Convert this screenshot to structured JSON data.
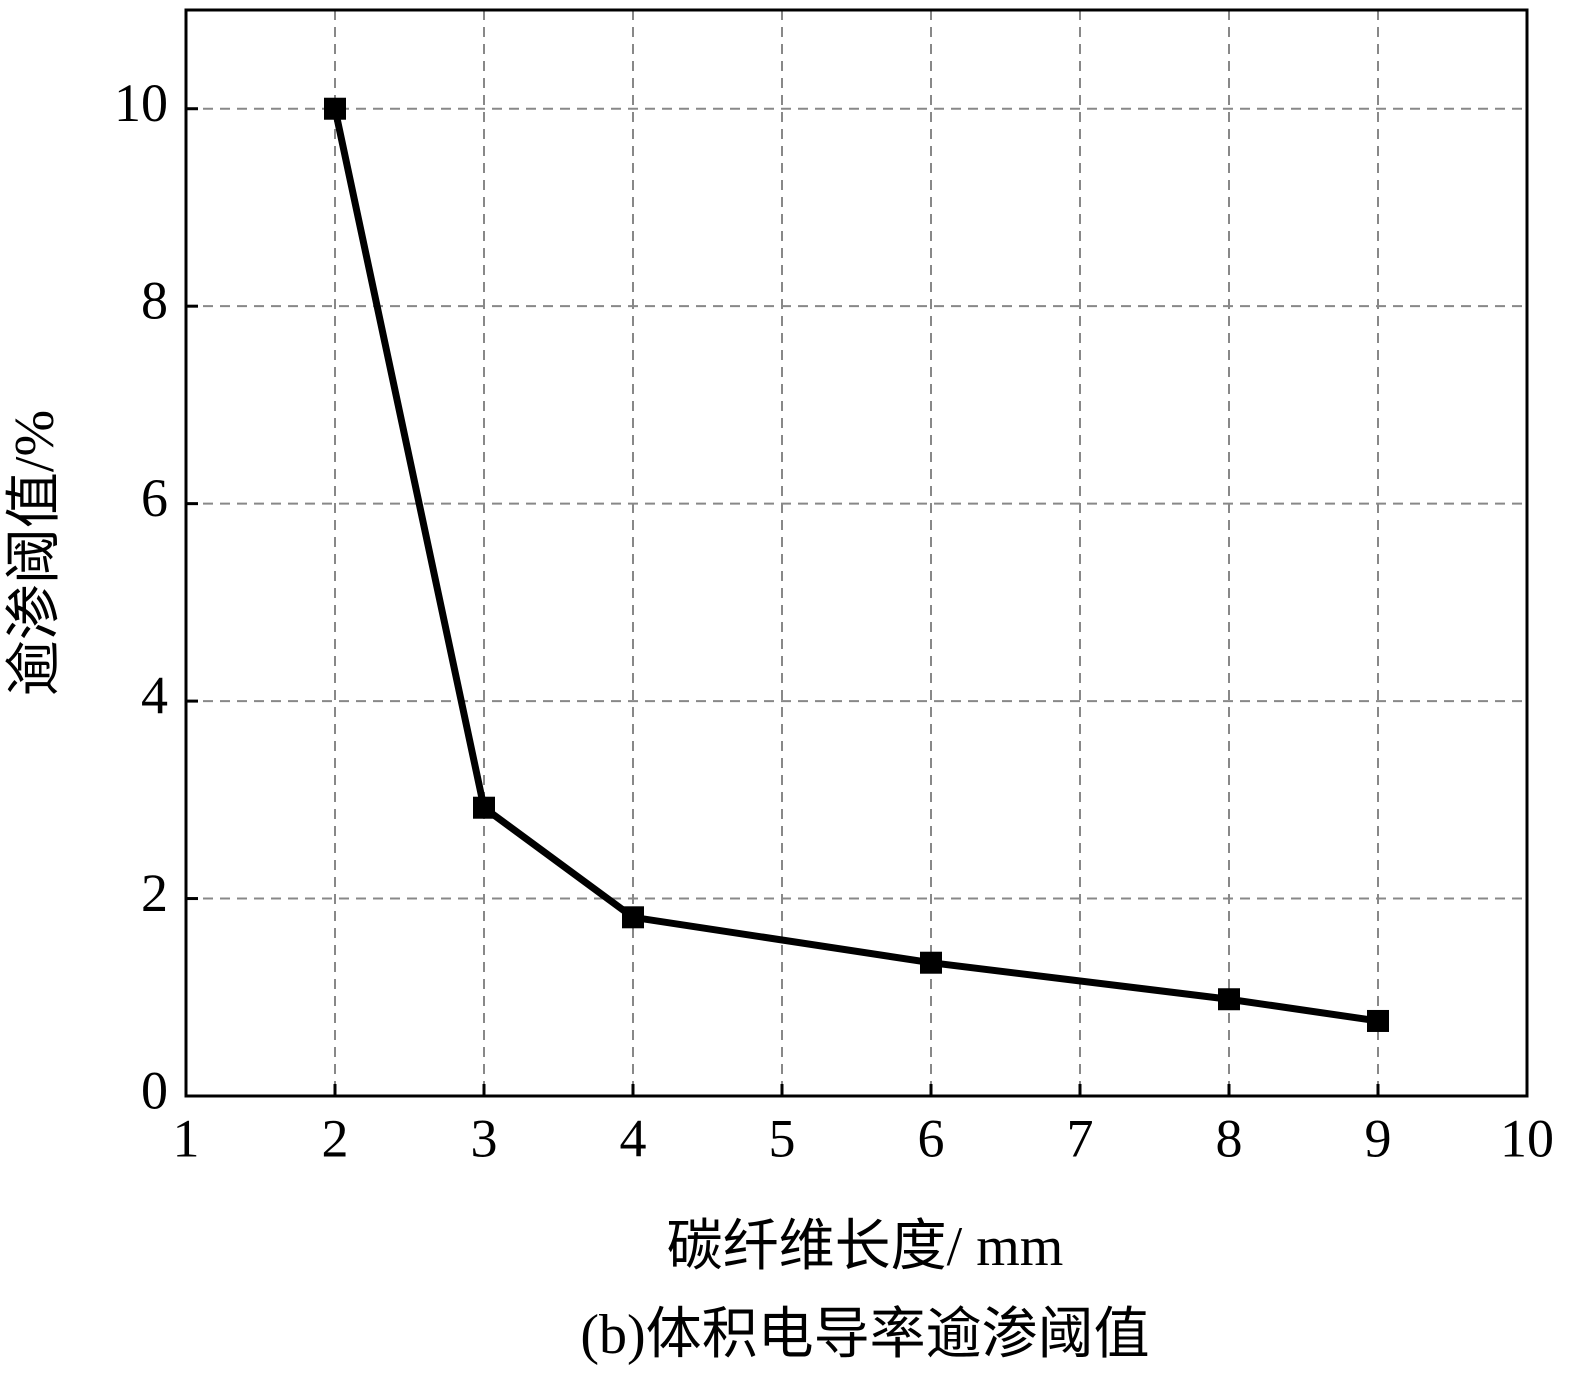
{
  "chart_data": {
    "type": "line",
    "title": "(b)体积电导率逾渗阈值",
    "x_label": "碳纤维长度/ mm",
    "y_label": "逾渗阈值/%",
    "series": [
      {
        "color": "#000000",
        "x": [
          2,
          3,
          4,
          6,
          8,
          9
        ],
        "values": [
          10,
          2.92,
          1.81,
          1.35,
          0.98,
          0.76
        ]
      }
    ],
    "xlim": [
      1,
      10
    ],
    "xticks": [
      1,
      2,
      3,
      4,
      5,
      6,
      7,
      8,
      9,
      10
    ],
    "ylim": [
      0,
      11
    ],
    "yticks": [
      0,
      2,
      4,
      6,
      8,
      10
    ],
    "grid": true
  }
}
